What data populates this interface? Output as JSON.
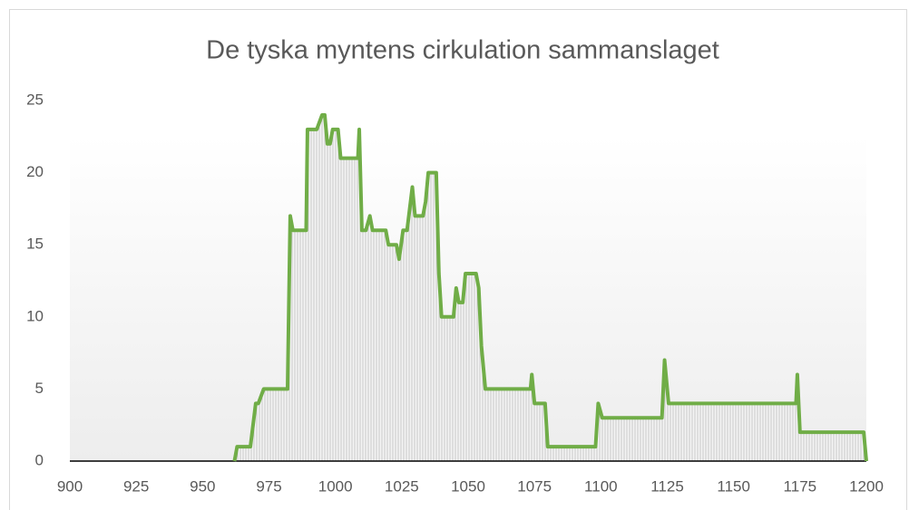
{
  "chart_data": {
    "type": "line",
    "title": "De tyska myntens cirkulation sammanslaget",
    "color": "#70ad47",
    "x": [
      962,
      963,
      968,
      970,
      971,
      973,
      982,
      983,
      984,
      989,
      989.5,
      993,
      995,
      996,
      997,
      998,
      999,
      1001,
      1002,
      1008.5,
      1009,
      1010,
      1011.5,
      1013,
      1014,
      1019,
      1020,
      1023,
      1024,
      1025.5,
      1027,
      1029,
      1030,
      1033,
      1034,
      1035,
      1038,
      1039,
      1040,
      1044.5,
      1045.5,
      1046.5,
      1048,
      1049,
      1053,
      1054,
      1055,
      1056.5,
      1073.5,
      1074,
      1075,
      1079,
      1080,
      1098,
      1099,
      1100.5,
      1123,
      1124,
      1125.5,
      1173.5,
      1174,
      1175,
      1199,
      1200
    ],
    "values": [
      0,
      1,
      1,
      4,
      4,
      5,
      5,
      17,
      16,
      16,
      23,
      23,
      24,
      24,
      22,
      22,
      23,
      23,
      21,
      21,
      23,
      16,
      16,
      17,
      16,
      16,
      15,
      15,
      14,
      16,
      16,
      19,
      17,
      17,
      18,
      20,
      20,
      13,
      10,
      10,
      12,
      11,
      11,
      13,
      13,
      12,
      8,
      5,
      5,
      6,
      4,
      4,
      1,
      1,
      4,
      3,
      3,
      7,
      4,
      4,
      6,
      2,
      2,
      0
    ],
    "xlim": [
      900,
      1200
    ],
    "xticks": [
      900,
      925,
      950,
      975,
      1000,
      1025,
      1050,
      1075,
      1100,
      1125,
      1150,
      1175,
      1200
    ],
    "ylim": [
      0,
      25
    ],
    "yticks": [
      0,
      5,
      10,
      15,
      20,
      25
    ]
  }
}
